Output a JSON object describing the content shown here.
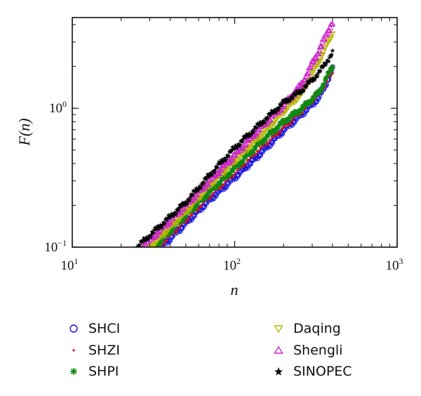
{
  "chart_data": {
    "type": "scatter",
    "xscale": "log",
    "yscale": "log",
    "xlim": [
      10,
      1000
    ],
    "ylim": [
      0.1,
      4.5
    ],
    "xlabel": "n",
    "ylabel": "F(n)",
    "x_ticks": [
      {
        "value": 10,
        "base": "10",
        "exp": "1"
      },
      {
        "value": 100,
        "base": "10",
        "exp": "2"
      },
      {
        "value": 1000,
        "base": "10",
        "exp": "3"
      }
    ],
    "y_ticks": [
      {
        "value": 0.1,
        "base": "10",
        "exp": "−1"
      },
      {
        "value": 1,
        "base": "10",
        "exp": "0"
      }
    ],
    "grid": false,
    "legend_position": "bottom",
    "series": [
      {
        "name": "SHCI",
        "marker": "circle-open",
        "color": "#1010e0",
        "points": [
          [
            35,
            0.1
          ],
          [
            50,
            0.15
          ],
          [
            70,
            0.22
          ],
          [
            100,
            0.32
          ],
          [
            140,
            0.46
          ],
          [
            200,
            0.7
          ],
          [
            260,
            0.92
          ],
          [
            330,
            1.2
          ],
          [
            400,
            1.9
          ]
        ]
      },
      {
        "name": "SHZI",
        "marker": "dot",
        "color": "#e01010",
        "points": [
          [
            34,
            0.1
          ],
          [
            50,
            0.155
          ],
          [
            70,
            0.23
          ],
          [
            100,
            0.34
          ],
          [
            140,
            0.5
          ],
          [
            200,
            0.72
          ],
          [
            260,
            0.95
          ],
          [
            330,
            1.25
          ],
          [
            400,
            1.8
          ]
        ]
      },
      {
        "name": "SHPI",
        "marker": "asterisk",
        "color": "#118811",
        "points": [
          [
            32,
            0.1
          ],
          [
            50,
            0.17
          ],
          [
            70,
            0.25
          ],
          [
            100,
            0.37
          ],
          [
            140,
            0.55
          ],
          [
            200,
            0.8
          ],
          [
            260,
            1.0
          ],
          [
            330,
            1.3
          ],
          [
            400,
            2.0
          ]
        ]
      },
      {
        "name": "Daqing",
        "marker": "triangle-down-open",
        "color": "#b8b800",
        "points": [
          [
            30,
            0.1
          ],
          [
            50,
            0.18
          ],
          [
            70,
            0.28
          ],
          [
            100,
            0.42
          ],
          [
            140,
            0.62
          ],
          [
            200,
            0.95
          ],
          [
            260,
            1.3
          ],
          [
            330,
            2.2
          ],
          [
            400,
            3.5
          ]
        ]
      },
      {
        "name": "Shengli",
        "marker": "triangle-up-open",
        "color": "#cc22cc",
        "points": [
          [
            27,
            0.1
          ],
          [
            50,
            0.2
          ],
          [
            70,
            0.3
          ],
          [
            100,
            0.46
          ],
          [
            140,
            0.7
          ],
          [
            200,
            1.05
          ],
          [
            260,
            1.5
          ],
          [
            330,
            2.6
          ],
          [
            400,
            4.2
          ]
        ]
      },
      {
        "name": "SINOPEC",
        "marker": "star",
        "color": "#000000",
        "points": [
          [
            25,
            0.1
          ],
          [
            50,
            0.21
          ],
          [
            70,
            0.33
          ],
          [
            100,
            0.52
          ],
          [
            140,
            0.75
          ],
          [
            200,
            1.1
          ],
          [
            260,
            1.35
          ],
          [
            330,
            1.8
          ],
          [
            400,
            2.5
          ]
        ]
      }
    ]
  }
}
